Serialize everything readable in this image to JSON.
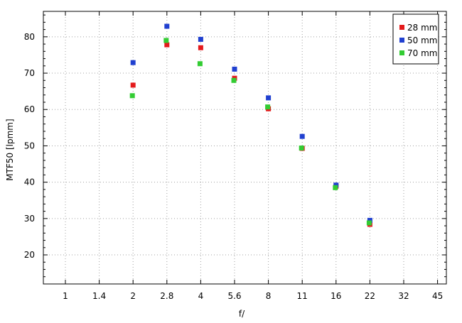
{
  "chart_data": {
    "type": "scatter",
    "title": "",
    "xlabel": "f/",
    "ylabel": "MTF50 [lpmm]",
    "x_tick_labels": [
      "1",
      "1.4",
      "2",
      "2.8",
      "4",
      "5.6",
      "8",
      "11",
      "16",
      "22",
      "32",
      "45"
    ],
    "y_ticks": [
      20,
      30,
      40,
      50,
      60,
      70,
      80
    ],
    "ylim": [
      12,
      87
    ],
    "grid": true,
    "legend_position": "top-right",
    "series": [
      {
        "name": "28 mm",
        "color": "#e41a1c",
        "points": [
          {
            "f": "2",
            "y": 66.7
          },
          {
            "f": "2.8",
            "y": 77.8
          },
          {
            "f": "4",
            "y": 77.0
          },
          {
            "f": "5.6",
            "y": 68.6
          },
          {
            "f": "8",
            "y": 60.2
          },
          {
            "f": "11",
            "y": 49.3
          },
          {
            "f": "16",
            "y": 38.9
          },
          {
            "f": "22",
            "y": 28.4
          }
        ]
      },
      {
        "name": "50 mm",
        "color": "#2040d0",
        "points": [
          {
            "f": "2",
            "y": 72.9
          },
          {
            "f": "2.8",
            "y": 82.9
          },
          {
            "f": "4",
            "y": 79.3
          },
          {
            "f": "5.6",
            "y": 71.1
          },
          {
            "f": "8",
            "y": 63.2
          },
          {
            "f": "11",
            "y": 52.6
          },
          {
            "f": "16",
            "y": 39.2
          },
          {
            "f": "22",
            "y": 29.5
          }
        ]
      },
      {
        "name": "70 mm",
        "color": "#33cc33",
        "points": [
          {
            "f": "2",
            "y": 63.8
          },
          {
            "f": "2.8",
            "y": 79.0
          },
          {
            "f": "4",
            "y": 72.6
          },
          {
            "f": "5.6",
            "y": 68.0
          },
          {
            "f": "8",
            "y": 60.7
          },
          {
            "f": "11",
            "y": 49.4
          },
          {
            "f": "16",
            "y": 38.5
          },
          {
            "f": "22",
            "y": 28.8
          }
        ]
      }
    ]
  }
}
